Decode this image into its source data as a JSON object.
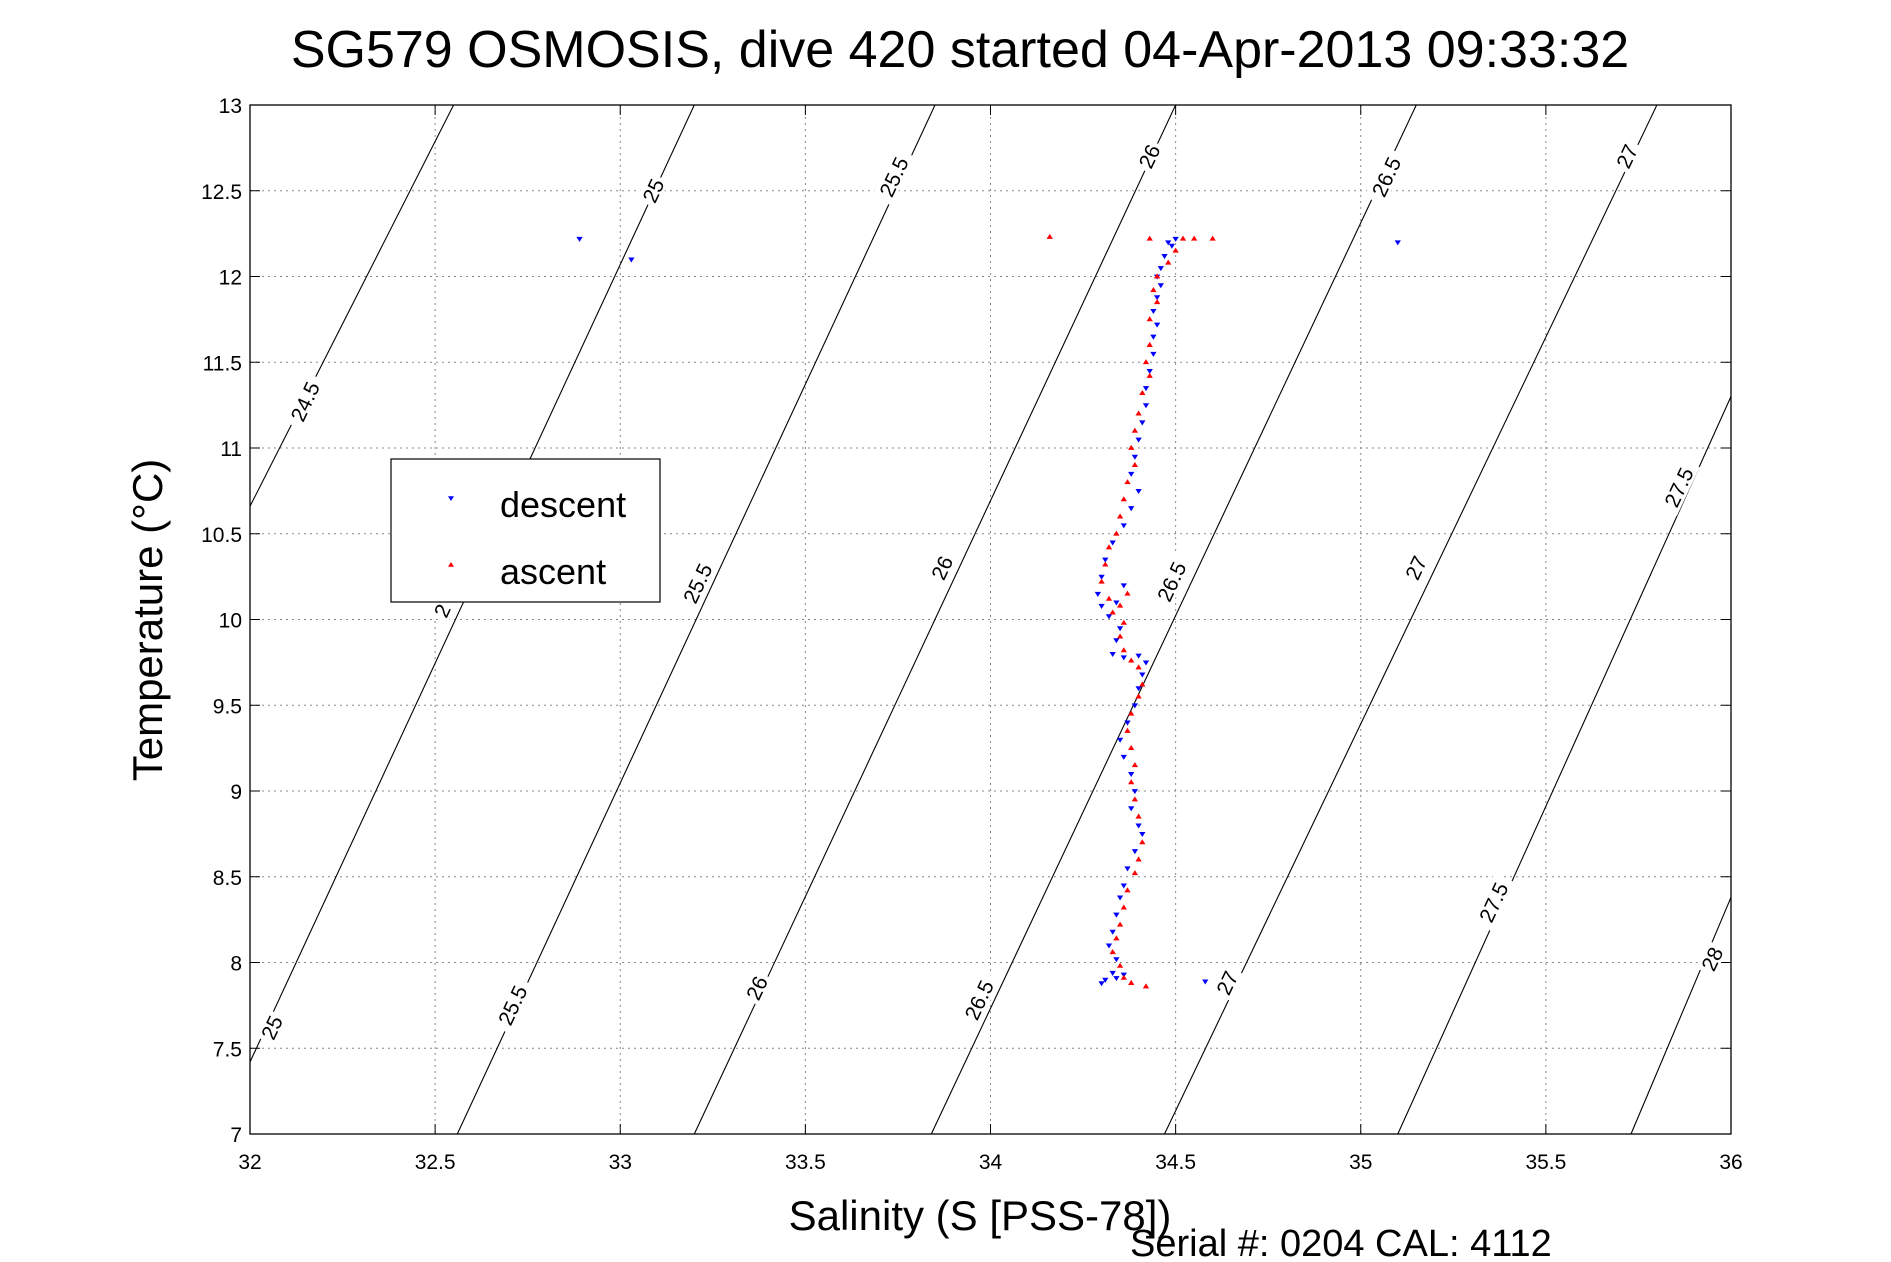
{
  "title": "SG579 OSMOSIS, dive 420 started 04-Apr-2013 09:33:32",
  "serial_text": "Serial #: 0204  CAL: 4112",
  "colors": {
    "descent": "#0000ff",
    "ascent": "#ff0000",
    "axes": "#000000",
    "grid": "#888888"
  },
  "chart_data": {
    "type": "scatter",
    "xlabel": "Salinity (S [PSS-78])",
    "ylabel": "Temperature (°C)",
    "xlim": [
      32,
      36
    ],
    "ylim": [
      7,
      13
    ],
    "xticks": [
      "32",
      "32.5",
      "33",
      "33.5",
      "34",
      "34.5",
      "35",
      "35.5",
      "36"
    ],
    "yticks": [
      "7",
      "7.5",
      "8",
      "8.5",
      "9",
      "9.5",
      "10",
      "10.5",
      "11",
      "11.5",
      "12",
      "12.5",
      "13"
    ],
    "grid": true,
    "legend_position": "left",
    "density_contours": {
      "lines": [
        {
          "label": "24.5",
          "points": [
            [
              32.0,
              10.66
            ],
            [
              32.55,
              13.0
            ]
          ]
        },
        {
          "label": "25",
          "points": [
            [
              32.0,
              7.42
            ],
            [
              33.2,
              13.0
            ]
          ]
        },
        {
          "label": "25.5",
          "points": [
            [
              32.56,
              7.0
            ],
            [
              33.85,
              13.0
            ]
          ]
        },
        {
          "label": "26",
          "points": [
            [
              33.2,
              7.0
            ],
            [
              34.5,
              13.0
            ]
          ]
        },
        {
          "label": "26.5",
          "points": [
            [
              33.84,
              7.0
            ],
            [
              35.15,
              13.0
            ]
          ]
        },
        {
          "label": "27",
          "points": [
            [
              34.47,
              7.0
            ],
            [
              35.8,
              13.0
            ]
          ]
        },
        {
          "label": "27.5",
          "points": [
            [
              35.1,
              7.0
            ],
            [
              36.0,
              11.3
            ]
          ]
        },
        {
          "label": "28",
          "points": [
            [
              35.73,
              7.0
            ],
            [
              36.0,
              8.38
            ]
          ]
        }
      ],
      "labels": [
        {
          "text": "24.5",
          "s": 32.15,
          "t": 11.27
        },
        {
          "text": "25",
          "s": 33.09,
          "t": 12.5
        },
        {
          "text": "25.5",
          "s": 33.74,
          "t": 12.58
        },
        {
          "text": "26",
          "s": 34.43,
          "t": 12.7
        },
        {
          "text": "26.5",
          "s": 35.07,
          "t": 12.58
        },
        {
          "text": "27",
          "s": 35.72,
          "t": 12.7
        },
        {
          "text": "25",
          "s": 32.06,
          "t": 7.62
        },
        {
          "text": "25.5",
          "s": 32.71,
          "t": 7.75
        },
        {
          "text": "26",
          "s": 33.37,
          "t": 7.85
        },
        {
          "text": "26.5",
          "s": 33.97,
          "t": 7.78
        },
        {
          "text": "27",
          "s": 34.64,
          "t": 7.88
        },
        {
          "text": "27.5",
          "s": 35.36,
          "t": 8.35
        },
        {
          "text": "28",
          "s": 35.95,
          "t": 8.02
        },
        {
          "text": "25.5",
          "s": 33.21,
          "t": 10.21
        },
        {
          "text": "26",
          "s": 33.87,
          "t": 10.3
        },
        {
          "text": "26.5",
          "s": 34.49,
          "t": 10.22
        },
        {
          "text": "27",
          "s": 35.15,
          "t": 10.3
        },
        {
          "text": "27.5",
          "s": 35.86,
          "t": 10.77
        },
        {
          "text": "2",
          "s": 32.52,
          "t": 10.05
        }
      ]
    },
    "series": [
      {
        "name": "descent",
        "marker": "triangle-down",
        "points": [
          [
            34.5,
            12.22
          ],
          [
            34.48,
            12.2
          ],
          [
            34.49,
            12.18
          ],
          [
            34.47,
            12.12
          ],
          [
            34.46,
            12.05
          ],
          [
            34.45,
            12.0
          ],
          [
            34.46,
            11.95
          ],
          [
            34.45,
            11.88
          ],
          [
            34.44,
            11.8
          ],
          [
            34.45,
            11.72
          ],
          [
            34.44,
            11.65
          ],
          [
            34.44,
            11.55
          ],
          [
            34.43,
            11.45
          ],
          [
            34.42,
            11.35
          ],
          [
            34.42,
            11.25
          ],
          [
            34.41,
            11.15
          ],
          [
            34.4,
            11.05
          ],
          [
            34.39,
            10.95
          ],
          [
            34.38,
            10.85
          ],
          [
            34.4,
            10.75
          ],
          [
            34.38,
            10.65
          ],
          [
            34.36,
            10.55
          ],
          [
            34.33,
            10.45
          ],
          [
            34.31,
            10.35
          ],
          [
            34.3,
            10.25
          ],
          [
            34.29,
            10.15
          ],
          [
            34.3,
            10.08
          ],
          [
            34.32,
            10.02
          ],
          [
            34.34,
            10.1
          ],
          [
            34.36,
            10.2
          ],
          [
            34.35,
            9.95
          ],
          [
            34.34,
            9.88
          ],
          [
            34.33,
            9.8
          ],
          [
            34.36,
            9.78
          ],
          [
            34.4,
            9.79
          ],
          [
            34.42,
            9.75
          ],
          [
            34.41,
            9.68
          ],
          [
            34.4,
            9.6
          ],
          [
            34.39,
            9.5
          ],
          [
            34.37,
            9.4
          ],
          [
            34.35,
            9.3
          ],
          [
            34.36,
            9.2
          ],
          [
            34.38,
            9.1
          ],
          [
            34.39,
            9.0
          ],
          [
            34.38,
            8.9
          ],
          [
            34.4,
            8.8
          ],
          [
            34.41,
            8.75
          ],
          [
            34.39,
            8.65
          ],
          [
            34.37,
            8.55
          ],
          [
            34.36,
            8.45
          ],
          [
            34.35,
            8.38
          ],
          [
            34.34,
            8.28
          ],
          [
            34.33,
            8.18
          ],
          [
            34.32,
            8.1
          ],
          [
            34.34,
            8.02
          ],
          [
            34.33,
            7.94
          ],
          [
            34.31,
            7.9
          ],
          [
            34.34,
            7.91
          ],
          [
            34.36,
            7.93
          ],
          [
            34.3,
            7.88
          ],
          [
            34.58,
            7.89
          ],
          [
            32.89,
            12.22
          ],
          [
            33.03,
            12.1
          ],
          [
            35.1,
            12.2
          ]
        ]
      },
      {
        "name": "ascent",
        "marker": "triangle-up",
        "points": [
          [
            34.52,
            12.22
          ],
          [
            34.55,
            12.22
          ],
          [
            34.6,
            12.22
          ],
          [
            34.43,
            12.22
          ],
          [
            34.5,
            12.15
          ],
          [
            34.48,
            12.08
          ],
          [
            34.45,
            12.0
          ],
          [
            34.44,
            11.92
          ],
          [
            34.45,
            11.85
          ],
          [
            34.43,
            11.75
          ],
          [
            34.43,
            11.6
          ],
          [
            34.42,
            11.5
          ],
          [
            34.43,
            11.42
          ],
          [
            34.41,
            11.32
          ],
          [
            34.4,
            11.2
          ],
          [
            34.39,
            11.1
          ],
          [
            34.38,
            11.0
          ],
          [
            34.39,
            10.9
          ],
          [
            34.37,
            10.8
          ],
          [
            34.36,
            10.7
          ],
          [
            34.35,
            10.6
          ],
          [
            34.34,
            10.5
          ],
          [
            34.32,
            10.42
          ],
          [
            34.31,
            10.32
          ],
          [
            34.3,
            10.22
          ],
          [
            34.32,
            10.12
          ],
          [
            34.33,
            10.04
          ],
          [
            34.35,
            10.08
          ],
          [
            34.37,
            10.15
          ],
          [
            34.36,
            9.98
          ],
          [
            34.35,
            9.9
          ],
          [
            34.36,
            9.82
          ],
          [
            34.38,
            9.76
          ],
          [
            34.4,
            9.72
          ],
          [
            34.41,
            9.62
          ],
          [
            34.4,
            9.55
          ],
          [
            34.38,
            9.45
          ],
          [
            34.37,
            9.35
          ],
          [
            34.38,
            9.25
          ],
          [
            34.39,
            9.15
          ],
          [
            34.38,
            9.05
          ],
          [
            34.39,
            8.95
          ],
          [
            34.4,
            8.85
          ],
          [
            34.41,
            8.7
          ],
          [
            34.4,
            8.6
          ],
          [
            34.39,
            8.52
          ],
          [
            34.37,
            8.42
          ],
          [
            34.36,
            8.32
          ],
          [
            34.35,
            8.22
          ],
          [
            34.34,
            8.14
          ],
          [
            34.33,
            8.06
          ],
          [
            34.35,
            7.98
          ],
          [
            34.36,
            7.91
          ],
          [
            34.38,
            7.88
          ],
          [
            34.42,
            7.86
          ],
          [
            34.16,
            12.23
          ]
        ]
      }
    ]
  }
}
